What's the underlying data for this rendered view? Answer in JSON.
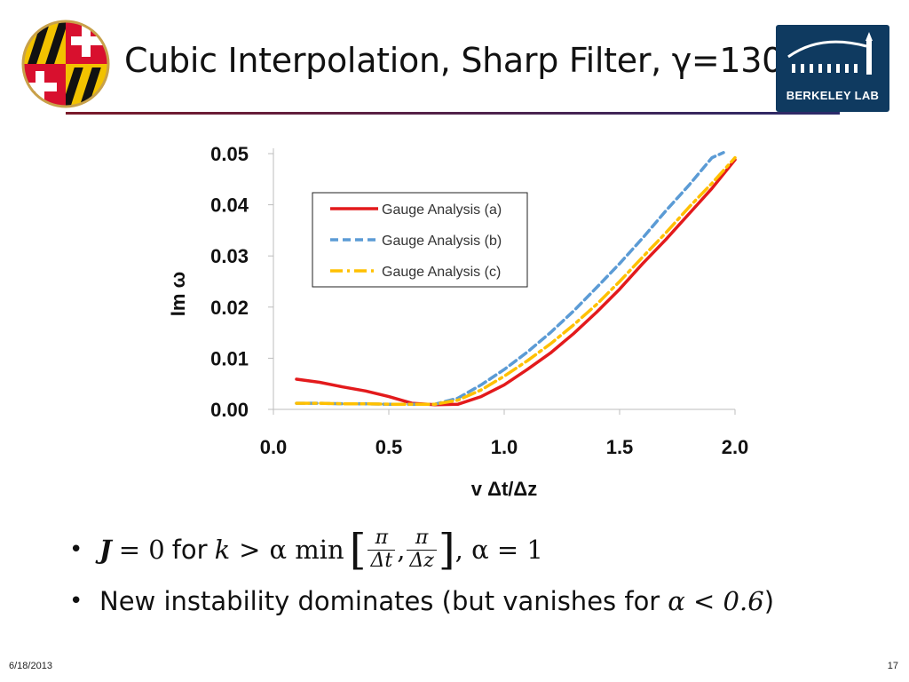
{
  "slide": {
    "title": "Cubic Interpolation, Sharp Filter, γ=130",
    "footer_date": "6/18/2013",
    "page_number": "17",
    "logo_right_text": "BERKELEY LAB"
  },
  "bullets": {
    "b1": {
      "j": "J",
      "eq0": "= 0",
      "for": "for",
      "k": "k",
      "gt": ">",
      "alpha_min": "α min",
      "pi1": "π",
      "dt": "Δt",
      "comma": ",",
      "pi2": "π",
      "dz": "Δz",
      "tail": ", α = 1"
    },
    "b2": {
      "text": "New instability dominates (but vanishes for",
      "cond": "α < 0.6",
      "close": ")"
    }
  },
  "chart_data": {
    "type": "line",
    "xlabel": "v Δt/Δz",
    "ylabel": "Im ω",
    "xlim": [
      0.0,
      2.0
    ],
    "ylim": [
      0.0,
      0.05
    ],
    "x_ticks": [
      "0.0",
      "0.5",
      "1.0",
      "1.5",
      "2.0"
    ],
    "y_ticks": [
      "0.00",
      "0.01",
      "0.02",
      "0.03",
      "0.04",
      "0.05"
    ],
    "grid": false,
    "legend_position": "top-left",
    "series": [
      {
        "name": "Gauge Analysis (a)",
        "color": "#e31a1c",
        "style": "solid",
        "points": [
          [
            0.1,
            0.0059
          ],
          [
            0.2,
            0.0053
          ],
          [
            0.3,
            0.0044
          ],
          [
            0.4,
            0.0036
          ],
          [
            0.5,
            0.0025
          ],
          [
            0.6,
            0.0012
          ],
          [
            0.7,
            0.0009
          ],
          [
            0.8,
            0.001
          ],
          [
            0.9,
            0.0025
          ],
          [
            1.0,
            0.0048
          ],
          [
            1.1,
            0.0078
          ],
          [
            1.2,
            0.011
          ],
          [
            1.3,
            0.0148
          ],
          [
            1.4,
            0.019
          ],
          [
            1.5,
            0.0235
          ],
          [
            1.6,
            0.0285
          ],
          [
            1.7,
            0.0332
          ],
          [
            1.8,
            0.0382
          ],
          [
            1.9,
            0.0432
          ],
          [
            2.0,
            0.0488
          ]
        ]
      },
      {
        "name": "Gauge Analysis (b)",
        "color": "#5b9bd5",
        "style": "dashed",
        "points": [
          [
            0.1,
            0.0012
          ],
          [
            0.2,
            0.0012
          ],
          [
            0.3,
            0.0011
          ],
          [
            0.4,
            0.0011
          ],
          [
            0.5,
            0.001
          ],
          [
            0.6,
            0.001
          ],
          [
            0.7,
            0.001
          ],
          [
            0.8,
            0.0022
          ],
          [
            0.9,
            0.0048
          ],
          [
            1.0,
            0.0078
          ],
          [
            1.1,
            0.0112
          ],
          [
            1.2,
            0.015
          ],
          [
            1.3,
            0.0192
          ],
          [
            1.4,
            0.0238
          ],
          [
            1.5,
            0.0285
          ],
          [
            1.6,
            0.0335
          ],
          [
            1.7,
            0.0388
          ],
          [
            1.8,
            0.0438
          ],
          [
            1.9,
            0.0492
          ],
          [
            1.95,
            0.0502
          ]
        ]
      },
      {
        "name": "Gauge Analysis (c)",
        "color": "#ffc000",
        "style": "dashdot",
        "points": [
          [
            0.1,
            0.0012
          ],
          [
            0.2,
            0.0012
          ],
          [
            0.3,
            0.0011
          ],
          [
            0.4,
            0.0011
          ],
          [
            0.5,
            0.001
          ],
          [
            0.6,
            0.001
          ],
          [
            0.7,
            0.001
          ],
          [
            0.8,
            0.0018
          ],
          [
            0.9,
            0.0038
          ],
          [
            1.0,
            0.0065
          ],
          [
            1.1,
            0.0095
          ],
          [
            1.2,
            0.0128
          ],
          [
            1.3,
            0.0165
          ],
          [
            1.4,
            0.0205
          ],
          [
            1.5,
            0.025
          ],
          [
            1.6,
            0.0298
          ],
          [
            1.7,
            0.0345
          ],
          [
            1.8,
            0.0395
          ],
          [
            1.9,
            0.0442
          ],
          [
            2.0,
            0.0492
          ]
        ]
      }
    ]
  }
}
